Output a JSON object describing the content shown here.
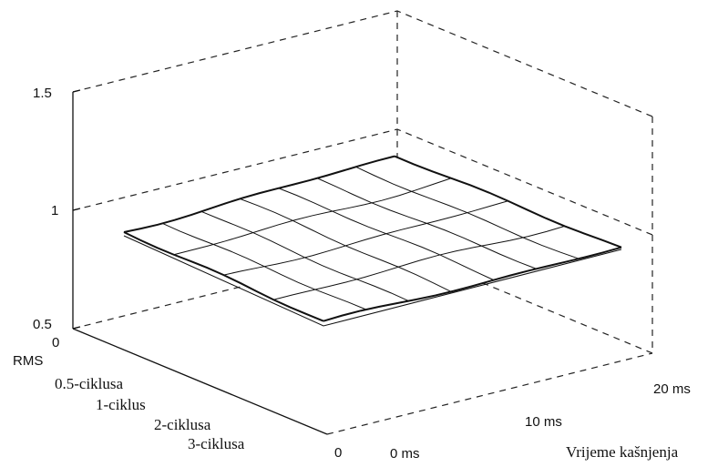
{
  "chart_data": {
    "type": "surface",
    "title": "",
    "zlabel": "RMS",
    "xlabel": "",
    "ylabel": "Vrijeme kašnjenja",
    "zlim": [
      0.5,
      1.5
    ],
    "z_ticks": [
      "0.5",
      "1",
      "1.5"
    ],
    "x_ticks": [
      "0",
      "0.5-ciklusa",
      "1-ciklus",
      "2-ciklusa",
      "3-ciklusa"
    ],
    "y_ticks": [
      "0",
      "0 ms",
      "10 ms",
      "20 ms"
    ],
    "surface_value": 0.9,
    "grid": true
  }
}
